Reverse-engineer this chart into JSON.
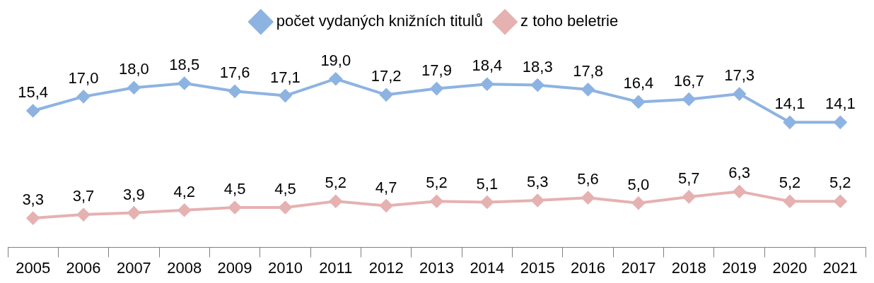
{
  "chart_data": {
    "type": "line",
    "categories": [
      "2005",
      "2006",
      "2007",
      "2008",
      "2009",
      "2010",
      "2011",
      "2012",
      "2013",
      "2014",
      "2015",
      "2016",
      "2017",
      "2018",
      "2019",
      "2020",
      "2021"
    ],
    "series": [
      {
        "name": "počet vydaných knižních titulů",
        "color": "#8db3e2",
        "values": [
          15.4,
          17.0,
          18.0,
          18.5,
          17.6,
          17.1,
          19.0,
          17.2,
          17.9,
          18.4,
          18.3,
          17.8,
          16.4,
          16.7,
          17.3,
          14.1,
          14.1
        ],
        "value_labels": [
          "15,4",
          "17,0",
          "18,0",
          "18,5",
          "17,6",
          "17,1",
          "19,0",
          "17,2",
          "17,9",
          "18,4",
          "18,3",
          "17,8",
          "16,4",
          "16,7",
          "17,3",
          "14,1",
          "14,1"
        ]
      },
      {
        "name": "z toho beletrie",
        "color": "#e6b1b1",
        "values": [
          3.3,
          3.7,
          3.9,
          4.2,
          4.5,
          4.5,
          5.2,
          4.7,
          5.2,
          5.1,
          5.3,
          5.6,
          5.0,
          5.7,
          6.3,
          5.2,
          5.2
        ],
        "value_labels": [
          "3,3",
          "3,7",
          "3,9",
          "4,2",
          "4,5",
          "4,5",
          "5,2",
          "4,7",
          "5,2",
          "5,1",
          "5,3",
          "5,6",
          "5,0",
          "5,7",
          "6,3",
          "5,2",
          "5,2"
        ]
      }
    ],
    "marker": "diamond",
    "line_style": "solid",
    "legend": "top"
  }
}
